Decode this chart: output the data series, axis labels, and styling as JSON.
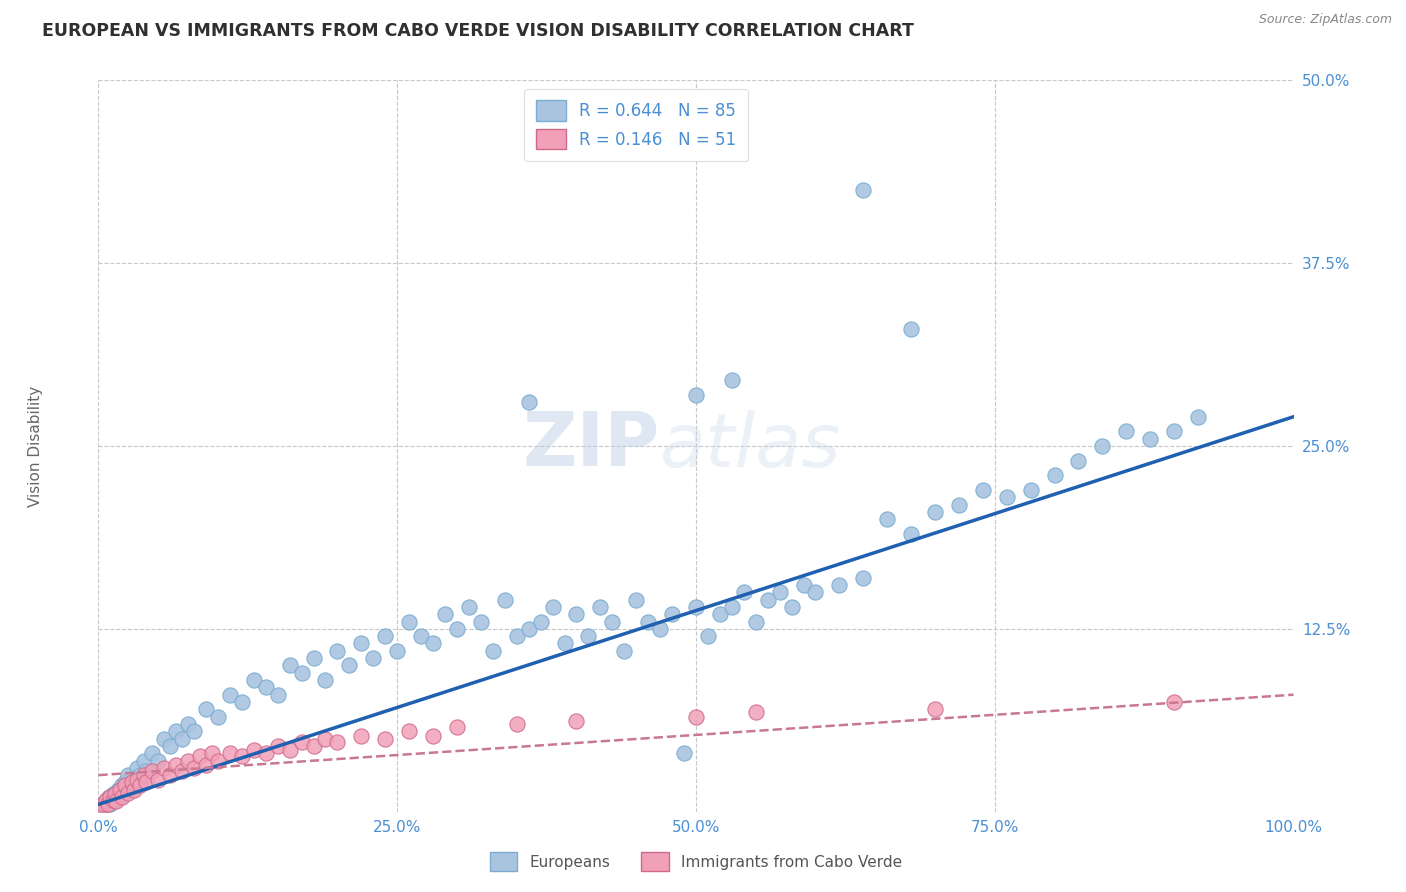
{
  "title": "EUROPEAN VS IMMIGRANTS FROM CABO VERDE VISION DISABILITY CORRELATION CHART",
  "source": "Source: ZipAtlas.com",
  "ylabel": "Vision Disability",
  "watermark": "ZIPatlas",
  "legend_label1": "Europeans",
  "legend_label2": "Immigrants from Cabo Verde",
  "xlim": [
    0,
    100
  ],
  "ylim": [
    0,
    50
  ],
  "yticks": [
    0,
    12.5,
    25,
    37.5,
    50
  ],
  "xticks": [
    0,
    25,
    50,
    75,
    100
  ],
  "bg_color": "#ffffff",
  "grid_color": "#c8c8c8",
  "blue_scatter_color": "#aac4e0",
  "blue_scatter_edge": "#7aadd0",
  "pink_scatter_color": "#f0a0b8",
  "pink_scatter_edge": "#d06888",
  "blue_line_color": "#2060b0",
  "pink_line_color": "#c87890",
  "axis_color": "#4a8fd4",
  "title_color": "#303030",
  "source_color": "#888888",
  "blue_dots": [
    [
      0.3,
      0.3
    ],
    [
      0.5,
      0.5
    ],
    [
      0.7,
      0.8
    ],
    [
      0.9,
      1.0
    ],
    [
      1.0,
      0.5
    ],
    [
      1.2,
      1.2
    ],
    [
      1.4,
      0.8
    ],
    [
      1.6,
      1.5
    ],
    [
      1.8,
      1.0
    ],
    [
      2.0,
      1.8
    ],
    [
      2.2,
      2.0
    ],
    [
      2.5,
      2.5
    ],
    [
      2.8,
      1.5
    ],
    [
      3.0,
      2.0
    ],
    [
      3.2,
      3.0
    ],
    [
      3.5,
      2.5
    ],
    [
      3.8,
      3.5
    ],
    [
      4.0,
      2.8
    ],
    [
      4.5,
      4.0
    ],
    [
      5.0,
      3.5
    ],
    [
      5.5,
      5.0
    ],
    [
      6.0,
      4.5
    ],
    [
      6.5,
      5.5
    ],
    [
      7.0,
      5.0
    ],
    [
      7.5,
      6.0
    ],
    [
      8.0,
      5.5
    ],
    [
      9.0,
      7.0
    ],
    [
      10.0,
      6.5
    ],
    [
      11.0,
      8.0
    ],
    [
      12.0,
      7.5
    ],
    [
      13.0,
      9.0
    ],
    [
      14.0,
      8.5
    ],
    [
      15.0,
      8.0
    ],
    [
      16.0,
      10.0
    ],
    [
      17.0,
      9.5
    ],
    [
      18.0,
      10.5
    ],
    [
      19.0,
      9.0
    ],
    [
      20.0,
      11.0
    ],
    [
      21.0,
      10.0
    ],
    [
      22.0,
      11.5
    ],
    [
      23.0,
      10.5
    ],
    [
      24.0,
      12.0
    ],
    [
      25.0,
      11.0
    ],
    [
      26.0,
      13.0
    ],
    [
      27.0,
      12.0
    ],
    [
      28.0,
      11.5
    ],
    [
      29.0,
      13.5
    ],
    [
      30.0,
      12.5
    ],
    [
      31.0,
      14.0
    ],
    [
      32.0,
      13.0
    ],
    [
      33.0,
      11.0
    ],
    [
      34.0,
      14.5
    ],
    [
      35.0,
      12.0
    ],
    [
      36.0,
      12.5
    ],
    [
      37.0,
      13.0
    ],
    [
      38.0,
      14.0
    ],
    [
      39.0,
      11.5
    ],
    [
      40.0,
      13.5
    ],
    [
      41.0,
      12.0
    ],
    [
      42.0,
      14.0
    ],
    [
      43.0,
      13.0
    ],
    [
      44.0,
      11.0
    ],
    [
      45.0,
      14.5
    ],
    [
      46.0,
      13.0
    ],
    [
      47.0,
      12.5
    ],
    [
      48.0,
      13.5
    ],
    [
      49.0,
      4.0
    ],
    [
      50.0,
      14.0
    ],
    [
      51.0,
      12.0
    ],
    [
      52.0,
      13.5
    ],
    [
      53.0,
      14.0
    ],
    [
      54.0,
      15.0
    ],
    [
      55.0,
      13.0
    ],
    [
      56.0,
      14.5
    ],
    [
      57.0,
      15.0
    ],
    [
      58.0,
      14.0
    ],
    [
      59.0,
      15.5
    ],
    [
      60.0,
      15.0
    ],
    [
      62.0,
      15.5
    ],
    [
      64.0,
      16.0
    ],
    [
      66.0,
      20.0
    ],
    [
      68.0,
      19.0
    ],
    [
      70.0,
      20.5
    ],
    [
      72.0,
      21.0
    ],
    [
      74.0,
      22.0
    ],
    [
      76.0,
      21.5
    ],
    [
      78.0,
      22.0
    ],
    [
      80.0,
      23.0
    ],
    [
      82.0,
      24.0
    ],
    [
      84.0,
      25.0
    ],
    [
      86.0,
      26.0
    ],
    [
      88.0,
      25.5
    ],
    [
      90.0,
      26.0
    ],
    [
      92.0,
      27.0
    ],
    [
      36.0,
      28.0
    ],
    [
      50.0,
      28.5
    ],
    [
      53.0,
      29.5
    ],
    [
      68.0,
      33.0
    ],
    [
      64.0,
      42.5
    ]
  ],
  "pink_dots": [
    [
      0.2,
      0.3
    ],
    [
      0.4,
      0.5
    ],
    [
      0.6,
      0.8
    ],
    [
      0.8,
      0.5
    ],
    [
      1.0,
      1.0
    ],
    [
      1.2,
      0.8
    ],
    [
      1.4,
      1.2
    ],
    [
      1.5,
      0.7
    ],
    [
      1.8,
      1.5
    ],
    [
      2.0,
      1.0
    ],
    [
      2.2,
      1.8
    ],
    [
      2.5,
      1.3
    ],
    [
      2.8,
      2.0
    ],
    [
      3.0,
      1.5
    ],
    [
      3.2,
      2.2
    ],
    [
      3.5,
      1.8
    ],
    [
      3.8,
      2.5
    ],
    [
      4.0,
      2.0
    ],
    [
      4.5,
      2.8
    ],
    [
      5.0,
      2.2
    ],
    [
      5.5,
      3.0
    ],
    [
      6.0,
      2.5
    ],
    [
      6.5,
      3.2
    ],
    [
      7.0,
      2.8
    ],
    [
      7.5,
      3.5
    ],
    [
      8.0,
      3.0
    ],
    [
      8.5,
      3.8
    ],
    [
      9.0,
      3.2
    ],
    [
      9.5,
      4.0
    ],
    [
      10.0,
      3.5
    ],
    [
      11.0,
      4.0
    ],
    [
      12.0,
      3.8
    ],
    [
      13.0,
      4.2
    ],
    [
      14.0,
      4.0
    ],
    [
      15.0,
      4.5
    ],
    [
      16.0,
      4.2
    ],
    [
      17.0,
      4.8
    ],
    [
      18.0,
      4.5
    ],
    [
      19.0,
      5.0
    ],
    [
      20.0,
      4.8
    ],
    [
      22.0,
      5.2
    ],
    [
      24.0,
      5.0
    ],
    [
      26.0,
      5.5
    ],
    [
      28.0,
      5.2
    ],
    [
      30.0,
      5.8
    ],
    [
      35.0,
      6.0
    ],
    [
      40.0,
      6.2
    ],
    [
      50.0,
      6.5
    ],
    [
      55.0,
      6.8
    ],
    [
      70.0,
      7.0
    ],
    [
      90.0,
      7.5
    ]
  ],
  "blue_trendline": {
    "x_start": 0,
    "x_end": 100,
    "y_start": 0.5,
    "y_end": 27.0
  },
  "pink_trendline": {
    "x_start": 0,
    "x_end": 100,
    "y_start": 2.5,
    "y_end": 8.0
  }
}
